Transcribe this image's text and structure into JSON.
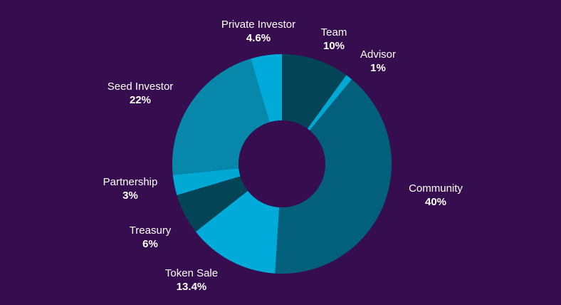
{
  "colors": {
    "background": "#360d4f",
    "label_text": "#ffffff"
  },
  "chart_data": {
    "type": "pie",
    "donut": true,
    "title": "",
    "legend": "none",
    "slices": [
      {
        "key": "team",
        "label": "Team",
        "value": 10,
        "display": "10%",
        "color": "#044457"
      },
      {
        "key": "advisor",
        "label": "Advisor",
        "value": 1,
        "display": "1%",
        "color": "#00a8d4"
      },
      {
        "key": "community",
        "label": "Community",
        "value": 40,
        "display": "40%",
        "color": "#03607d"
      },
      {
        "key": "token_sale",
        "label": "Token Sale",
        "value": 13.4,
        "display": "13.4%",
        "color": "#00aad9"
      },
      {
        "key": "treasury",
        "label": "Treasury",
        "value": 6,
        "display": "6%",
        "color": "#044457"
      },
      {
        "key": "partnership",
        "label": "Partnership",
        "value": 3,
        "display": "3%",
        "color": "#00a8d4"
      },
      {
        "key": "seed_investor",
        "label": "Seed Investor",
        "value": 22,
        "display": "22%",
        "color": "#0787aa"
      },
      {
        "key": "private_investor",
        "label": "Private Investor",
        "value": 4.6,
        "display": "4.6%",
        "color": "#00aad9"
      }
    ]
  }
}
